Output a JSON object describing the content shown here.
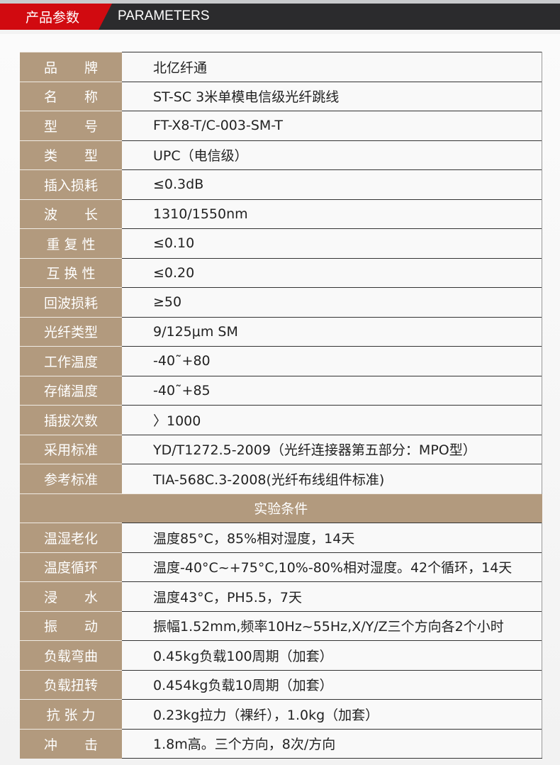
{
  "header": {
    "title_cn": "产品参数",
    "title_en": "PARAMETERS",
    "accent": "#d10a10",
    "dark": "#2b2b2d",
    "label_bg": "#b29a7e"
  },
  "params": [
    {
      "label": "品　　牌",
      "value": "北亿纤通"
    },
    {
      "label": "名　　称",
      "value": "ST-SC 3米单模电信级光纤跳线"
    },
    {
      "label": "型　　号",
      "value": "FT-X8-T/C-003-SM-T"
    },
    {
      "label": "类　　型",
      "value": "UPC（电信级）"
    },
    {
      "label": "插入损耗",
      "value": "≤0.3dB"
    },
    {
      "label": "波　　长",
      "value": "1310/1550nm"
    },
    {
      "label": "重 复 性",
      "value": "≤0.10"
    },
    {
      "label": "互 换 性",
      "value": "≤0.20"
    },
    {
      "label": "回波损耗",
      "value": "≥50"
    },
    {
      "label": "光纤类型",
      "value": "9/125μm SM"
    },
    {
      "label": "工作温度",
      "value": "-40˜+80"
    },
    {
      "label": "存储温度",
      "value": "-40˜+85"
    },
    {
      "label": "插拔次数",
      "value": "〉1000"
    },
    {
      "label": "采用标准",
      "value": "YD/T1272.5-2009（光纤连接器第五部分：MPO型）"
    },
    {
      "label": "参考标准",
      "value": "TIA-568C.3-2008(光纤布线组件标准)"
    }
  ],
  "section_title": "实验条件",
  "tests": [
    {
      "label": "温湿老化",
      "value": "温度85°C，85%相对湿度，14天"
    },
    {
      "label": "温度循环",
      "value": "温度-40°C~+75°C,10%-80%相对湿度。42个循环，14天"
    },
    {
      "label": "浸　　水",
      "value": "温度43°C，PH5.5，7天"
    },
    {
      "label": "振　　动",
      "value": "振幅1.52mm,频率10Hz~55Hz,X/Y/Z三个方向各2个小时"
    },
    {
      "label": "负载弯曲",
      "value": "0.45kg负载100周期（加套）"
    },
    {
      "label": "负载扭转",
      "value": "0.454kg负载10周期（加套）"
    },
    {
      "label": "抗 张 力",
      "value": "0.23kg拉力（裸纤），1.0kg（加套）"
    },
    {
      "label": "冲　　击",
      "value": "1.8m高。三个方向，8次/方向"
    }
  ]
}
